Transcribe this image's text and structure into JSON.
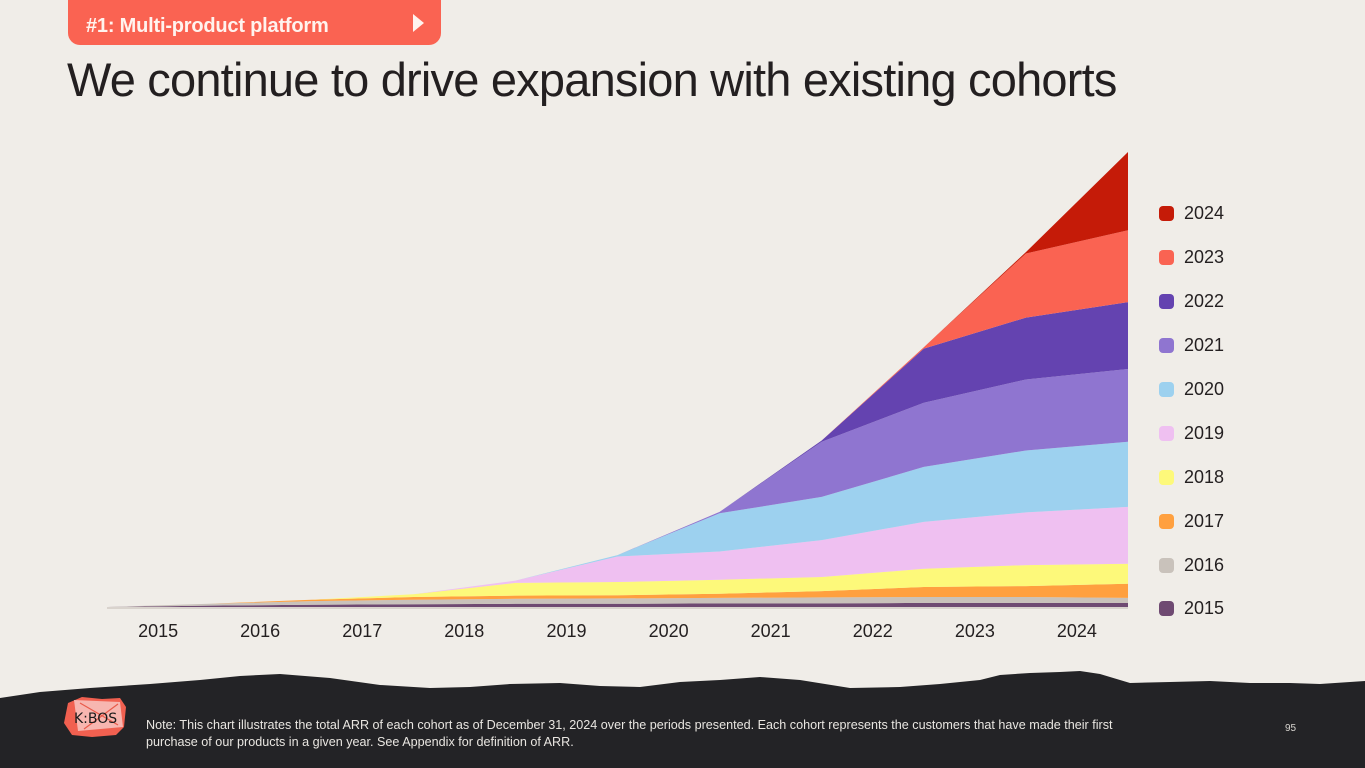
{
  "header": {
    "section_tab_label": "#1: Multi-product platform",
    "section_tab_icon": "play-arrow-icon",
    "title": "We continue to drive expansion with existing cohorts"
  },
  "chart_data": {
    "type": "area",
    "stacked": true,
    "title": "We continue to drive expansion with existing cohorts",
    "xlabel": "",
    "ylabel": "",
    "y_units": "relative ARR index (stack total at end of 2024 = 100)",
    "y_axis_visible": false,
    "grid": false,
    "legend_position": "right",
    "x_tick_labels": [
      "2015",
      "2016",
      "2017",
      "2018",
      "2019",
      "2020",
      "2021",
      "2022",
      "2023",
      "2024"
    ],
    "x_points": [
      2014.5,
      2015.5,
      2016.5,
      2017.5,
      2018.5,
      2019.5,
      2020.5,
      2021.5,
      2022.5,
      2023.5,
      2024.5
    ],
    "series": [
      {
        "name": "2015",
        "color": "#6f4a72",
        "values": [
          0,
          0.3,
          0.5,
          0.6,
          0.7,
          0.7,
          0.8,
          0.8,
          0.9,
          0.9,
          0.9
        ]
      },
      {
        "name": "2016",
        "color": "#c9c2bb",
        "values": [
          0,
          0.4,
          0.8,
          1.0,
          1.1,
          1.2,
          1.2,
          1.3,
          1.3,
          1.3,
          1.1
        ]
      },
      {
        "name": "2017",
        "color": "#ffa03f",
        "values": [
          0,
          0,
          0.3,
          0.6,
          0.7,
          0.7,
          0.9,
          1.4,
          2.2,
          2.4,
          3.1
        ]
      },
      {
        "name": "2018",
        "color": "#fdf97a",
        "values": [
          0,
          0,
          0,
          0.6,
          2.8,
          2.9,
          3.1,
          3.1,
          4.0,
          4.6,
          4.4
        ]
      },
      {
        "name": "2019",
        "color": "#efc0f1",
        "values": [
          0,
          0,
          0,
          0,
          0.5,
          5.6,
          6.2,
          8.1,
          10.3,
          11.6,
          12.5
        ]
      },
      {
        "name": "2020",
        "color": "#9dd1ef",
        "values": [
          0,
          0,
          0,
          0,
          0,
          0.3,
          8.4,
          9.5,
          12.1,
          13.6,
          14.3
        ]
      },
      {
        "name": "2021",
        "color": "#8f75d0",
        "values": [
          0,
          0,
          0,
          0,
          0,
          0,
          0.3,
          12.1,
          14.1,
          15.6,
          16.0
        ]
      },
      {
        "name": "2022",
        "color": "#6443b0",
        "values": [
          0,
          0,
          0,
          0,
          0,
          0,
          0,
          0.3,
          11.9,
          13.6,
          14.7
        ]
      },
      {
        "name": "2023",
        "color": "#fa6352",
        "values": [
          0,
          0,
          0,
          0,
          0,
          0,
          0,
          0,
          0.3,
          14.1,
          15.8
        ]
      },
      {
        "name": "2024",
        "color": "#c51b08",
        "values": [
          0,
          0,
          0,
          0,
          0,
          0,
          0,
          0,
          0,
          0.3,
          17.2
        ]
      }
    ],
    "legend_order": [
      "2024",
      "2023",
      "2022",
      "2021",
      "2020",
      "2019",
      "2018",
      "2017",
      "2016",
      "2015"
    ]
  },
  "footer": {
    "logo_text": "K:BOS",
    "note": "Note: This chart illustrates the total ARR of each cohort as of December 31, 2024 over the periods presented. Each cohort represents the customers that have made their first purchase of our products in a given year. See Appendix for definition of ARR.",
    "page_number": "95"
  },
  "colors": {
    "background": "#f0ede8",
    "accent": "#fa6352",
    "footer_background": "#232326",
    "text": "#231f20"
  }
}
